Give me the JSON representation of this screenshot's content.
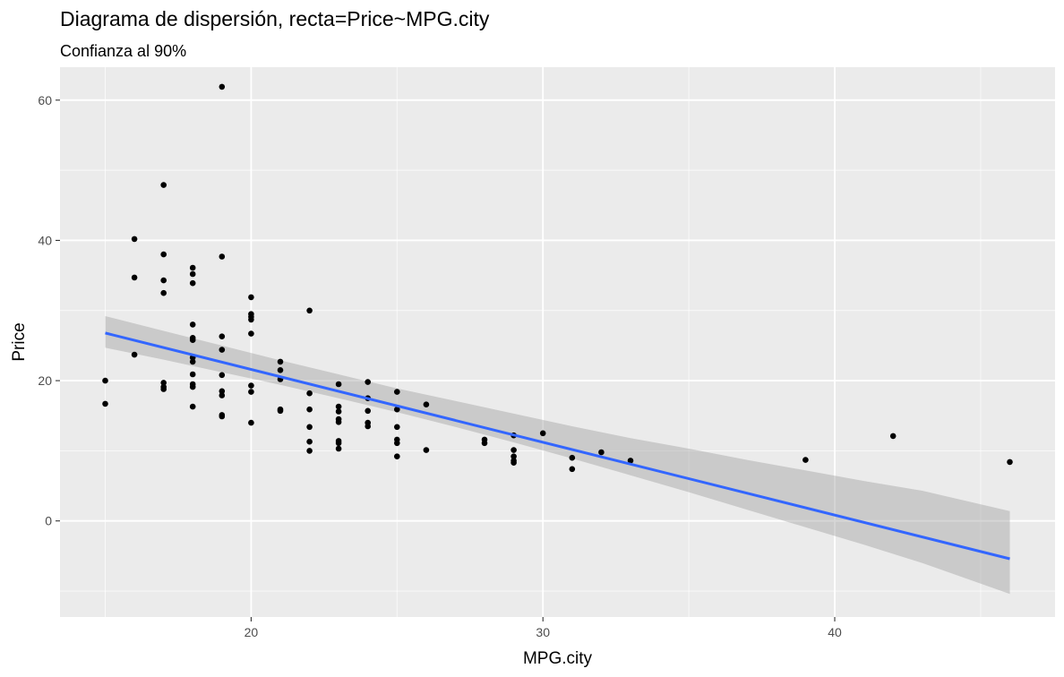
{
  "chart_data": {
    "type": "scatter",
    "title": "Diagrama de dispersión, recta=Price~MPG.city",
    "subtitle": "Confianza al 90%",
    "xlabel": "MPG.city",
    "ylabel": "Price",
    "xlim": [
      13.45,
      47.55
    ],
    "ylim": [
      -13.7,
      64.7
    ],
    "x_ticks": [
      20,
      30,
      40
    ],
    "y_ticks": [
      0,
      20,
      40,
      60
    ],
    "x_minor": [
      15,
      25,
      35,
      45
    ],
    "y_minor": [
      -10,
      10,
      30,
      50
    ],
    "grid": true,
    "colors": {
      "panel": "#ebebeb",
      "grid": "#ffffff",
      "point": "#000000",
      "line": "#3366ff",
      "band": "#999999"
    },
    "points": [
      [
        15,
        20.0
      ],
      [
        15,
        16.7
      ],
      [
        16,
        40.2
      ],
      [
        16,
        34.7
      ],
      [
        16,
        23.7
      ],
      [
        17,
        47.9
      ],
      [
        17,
        38.0
      ],
      [
        17,
        34.3
      ],
      [
        17,
        32.5
      ],
      [
        17,
        19.7
      ],
      [
        17,
        19.1
      ],
      [
        17,
        18.8
      ],
      [
        18,
        36.1
      ],
      [
        18,
        35.2
      ],
      [
        18,
        33.9
      ],
      [
        18,
        28.0
      ],
      [
        18,
        26.1
      ],
      [
        18,
        25.8
      ],
      [
        18,
        23.3
      ],
      [
        18,
        22.7
      ],
      [
        18,
        20.9
      ],
      [
        18,
        19.5
      ],
      [
        18,
        19.1
      ],
      [
        18,
        16.3
      ],
      [
        19,
        61.9
      ],
      [
        19,
        37.7
      ],
      [
        19,
        26.3
      ],
      [
        19,
        24.4
      ],
      [
        19,
        20.8
      ],
      [
        19,
        18.5
      ],
      [
        19,
        17.9
      ],
      [
        19,
        15.1
      ],
      [
        19,
        14.9
      ],
      [
        20,
        31.9
      ],
      [
        20,
        29.5
      ],
      [
        20,
        29.1
      ],
      [
        20,
        28.7
      ],
      [
        20,
        26.7
      ],
      [
        20,
        19.3
      ],
      [
        20,
        18.4
      ],
      [
        20,
        14.0
      ],
      [
        21,
        22.7
      ],
      [
        21,
        21.5
      ],
      [
        21,
        20.2
      ],
      [
        21,
        15.9
      ],
      [
        21,
        15.7
      ],
      [
        22,
        30.0
      ],
      [
        22,
        18.2
      ],
      [
        22,
        15.9
      ],
      [
        22,
        13.4
      ],
      [
        22,
        11.3
      ],
      [
        22,
        10.0
      ],
      [
        23,
        19.5
      ],
      [
        23,
        16.3
      ],
      [
        23,
        15.6
      ],
      [
        23,
        14.5
      ],
      [
        23,
        14.1
      ],
      [
        23,
        11.4
      ],
      [
        23,
        11.1
      ],
      [
        23,
        10.3
      ],
      [
        24,
        19.8
      ],
      [
        24,
        17.5
      ],
      [
        24,
        15.7
      ],
      [
        24,
        14.0
      ],
      [
        24,
        13.5
      ],
      [
        25,
        18.4
      ],
      [
        25,
        15.9
      ],
      [
        25,
        13.4
      ],
      [
        25,
        11.6
      ],
      [
        25,
        11.1
      ],
      [
        25,
        9.2
      ],
      [
        26,
        16.6
      ],
      [
        26,
        10.1
      ],
      [
        28,
        11.6
      ],
      [
        28,
        11.1
      ],
      [
        29,
        12.2
      ],
      [
        29,
        10.1
      ],
      [
        29,
        9.2
      ],
      [
        29,
        8.6
      ],
      [
        29,
        8.3
      ],
      [
        30,
        12.5
      ],
      [
        31,
        9.0
      ],
      [
        31,
        7.4
      ],
      [
        32,
        9.8
      ],
      [
        33,
        8.6
      ],
      [
        39,
        8.7
      ],
      [
        42,
        12.1
      ],
      [
        46,
        8.4
      ]
    ],
    "fit": {
      "intercept": 42.37,
      "slope": -1.0385,
      "x_range": [
        15,
        46
      ]
    },
    "ci_band": {
      "x": [
        15,
        17,
        19,
        21,
        23,
        25,
        27,
        29,
        31,
        33,
        35,
        37,
        39,
        41,
        43,
        46
      ],
      "lower": [
        24.7,
        23.0,
        21.2,
        19.4,
        17.5,
        15.5,
        13.4,
        11.2,
        8.9,
        6.5,
        4.1,
        1.6,
        -0.9,
        -3.4,
        -6.0,
        -10.4
      ],
      "upper": [
        29.2,
        27.1,
        25.0,
        22.9,
        20.9,
        18.9,
        17.1,
        15.3,
        13.5,
        11.8,
        10.3,
        8.7,
        7.2,
        5.7,
        4.3,
        1.4
      ]
    }
  }
}
